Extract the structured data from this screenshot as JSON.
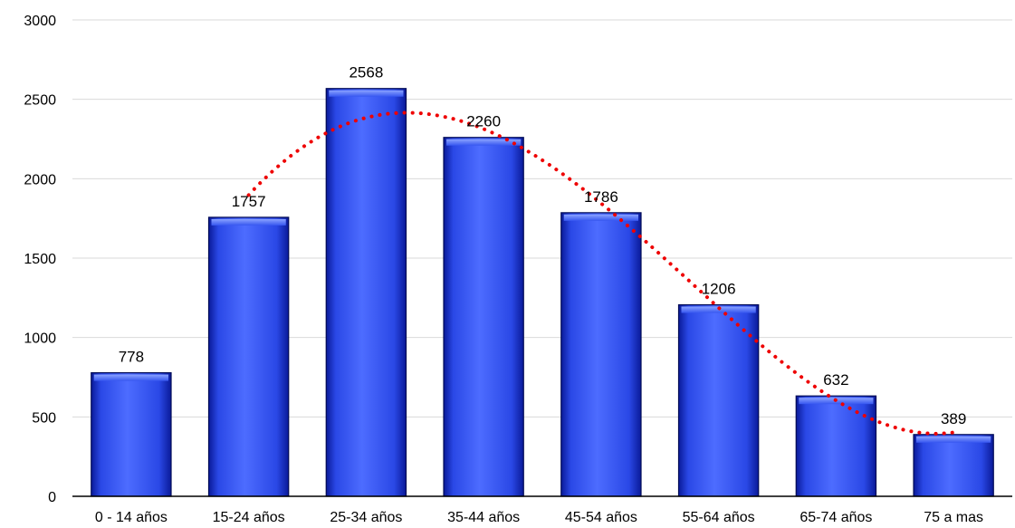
{
  "chart_data": {
    "type": "bar",
    "categories": [
      "0 - 14 años",
      "15-24 años",
      "25-34 años",
      "35-44 años",
      "45-54 años",
      "55-64 años",
      "65-74 años",
      "75 a mas"
    ],
    "values": [
      778,
      1757,
      2568,
      2260,
      1786,
      1206,
      632,
      389
    ],
    "ylim": [
      0,
      3000
    ],
    "yticks": [
      0,
      500,
      1000,
      1500,
      2000,
      2500,
      3000
    ],
    "grid": true,
    "bar_color": "#2f4fe8",
    "bar_edge_color": "#000a55",
    "trendline": {
      "type": "polynomial",
      "style": "dotted",
      "color": "#ee0000",
      "x_start": "15-24 años",
      "x_end": "75 a mas"
    }
  }
}
